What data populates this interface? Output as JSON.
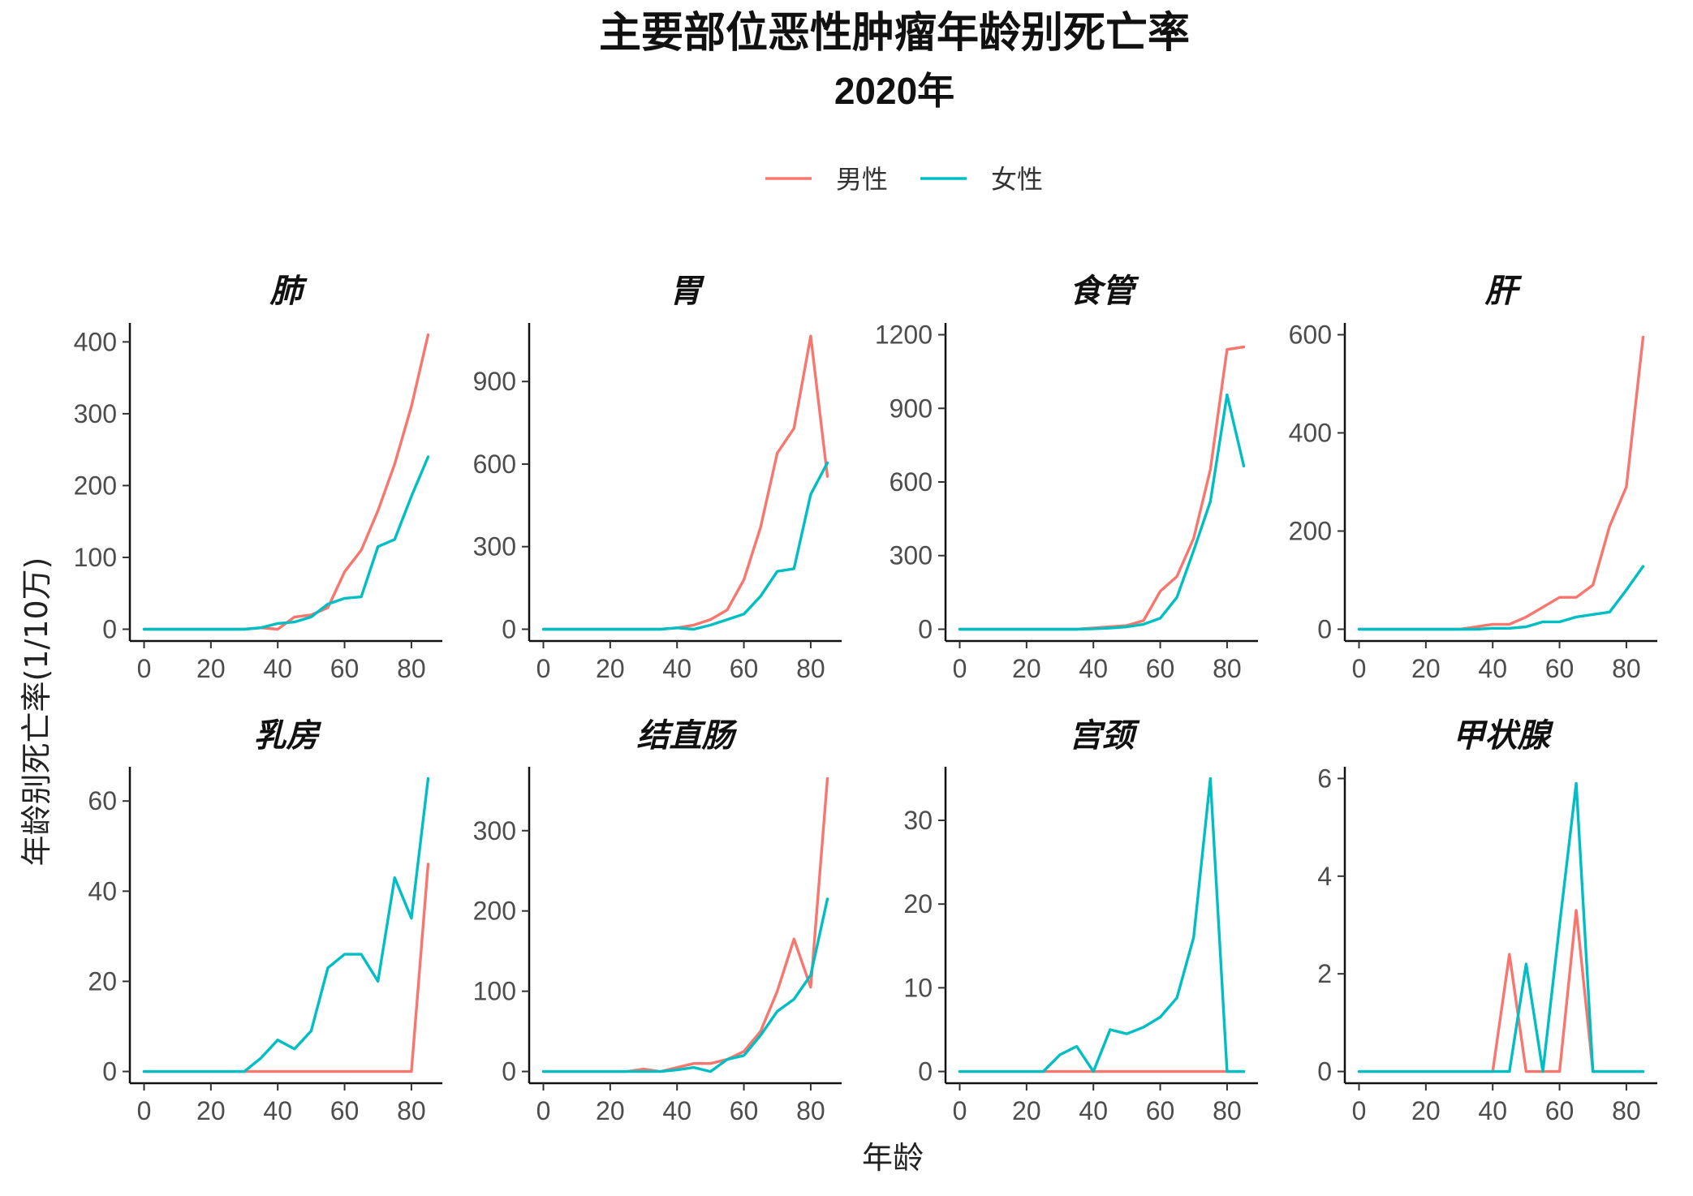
{
  "title": "主要部位恶性肿瘤年龄别死亡率",
  "subtitle": "2020年",
  "xlabel": "年龄",
  "ylabel": "年龄别死亡率(1/10万)",
  "legend": {
    "placement": "top",
    "items": [
      {
        "name": "男性",
        "color": "#F8766D"
      },
      {
        "name": "女性",
        "color": "#00BFC4"
      }
    ]
  },
  "chart_data": {
    "type": "line",
    "x": [
      0,
      5,
      10,
      15,
      20,
      25,
      30,
      35,
      40,
      45,
      50,
      55,
      60,
      65,
      70,
      75,
      80,
      85
    ],
    "xticks": [
      0,
      20,
      40,
      60,
      80
    ],
    "xlim": [
      0,
      85
    ],
    "grid": false,
    "panels": [
      {
        "title": "肺",
        "ylim": [
          0,
          410
        ],
        "yticks": [
          0,
          100,
          200,
          300,
          400
        ],
        "series": [
          {
            "name": "男性",
            "values": [
              0,
              0,
              0,
              0,
              0,
              0,
              0,
              2,
              0,
              17,
              20,
              30,
              80,
              110,
              165,
              230,
              310,
              410
            ]
          },
          {
            "name": "女性",
            "values": [
              0,
              0,
              0,
              0,
              0,
              0,
              0,
              2,
              8,
              10,
              17,
              35,
              43,
              45,
              115,
              125,
              185,
              240
            ]
          }
        ]
      },
      {
        "title": "胃",
        "ylim": [
          0,
          1070
        ],
        "yticks": [
          0,
          300,
          600,
          900
        ],
        "series": [
          {
            "name": "男性",
            "values": [
              0,
              0,
              0,
              0,
              0,
              0,
              0,
              0,
              5,
              15,
              35,
              70,
              180,
              370,
              640,
              730,
              1065,
              555
            ]
          },
          {
            "name": "女性",
            "values": [
              0,
              0,
              0,
              0,
              0,
              0,
              0,
              0,
              5,
              0,
              15,
              35,
              55,
              120,
              210,
              220,
              490,
              605
            ]
          }
        ]
      },
      {
        "title": "食管",
        "ylim": [
          0,
          1200
        ],
        "yticks": [
          0,
          300,
          600,
          900,
          1200
        ],
        "series": [
          {
            "name": "男性",
            "values": [
              0,
              0,
              0,
              0,
              0,
              0,
              0,
              0,
              5,
              10,
              15,
              35,
              155,
              215,
              370,
              650,
              1140,
              1150
            ]
          },
          {
            "name": "女性",
            "values": [
              0,
              0,
              0,
              0,
              0,
              0,
              0,
              0,
              2,
              5,
              10,
              20,
              45,
              130,
              320,
              520,
              955,
              665
            ]
          }
        ]
      },
      {
        "title": "肝",
        "ylim": [
          0,
          600
        ],
        "yticks": [
          0,
          200,
          400,
          600
        ],
        "series": [
          {
            "name": "男性",
            "values": [
              0,
              0,
              0,
              0,
              0,
              0,
              0,
              5,
              10,
              10,
              25,
              45,
              65,
              65,
              90,
              210,
              290,
              595
            ]
          },
          {
            "name": "女性",
            "values": [
              0,
              0,
              0,
              0,
              0,
              0,
              0,
              0,
              2,
              2,
              5,
              15,
              15,
              25,
              30,
              35,
              80,
              128
            ]
          }
        ]
      },
      {
        "title": "乳房",
        "ylim": [
          0,
          65
        ],
        "yticks": [
          0,
          20,
          40,
          60
        ],
        "series": [
          {
            "name": "男性",
            "values": [
              0,
              0,
              0,
              0,
              0,
              0,
              0,
              0,
              0,
              0,
              0,
              0,
              0,
              0,
              0,
              0,
              0,
              46
            ]
          },
          {
            "name": "女性",
            "values": [
              0,
              0,
              0,
              0,
              0,
              0,
              0,
              3,
              7,
              5,
              9,
              23,
              26,
              26,
              20,
              43,
              34,
              65
            ]
          }
        ]
      },
      {
        "title": "结直肠",
        "ylim": [
          0,
          365
        ],
        "yticks": [
          0,
          100,
          200,
          300
        ],
        "series": [
          {
            "name": "男性",
            "values": [
              0,
              0,
              0,
              0,
              0,
              0,
              3,
              0,
              5,
              10,
              10,
              15,
              25,
              50,
              100,
              165,
              105,
              365
            ]
          },
          {
            "name": "女性",
            "values": [
              0,
              0,
              0,
              0,
              0,
              0,
              0,
              0,
              2,
              5,
              0,
              15,
              20,
              45,
              75,
              90,
              120,
              215
            ]
          }
        ]
      },
      {
        "title": "宫颈",
        "ylim": [
          0,
          35
        ],
        "yticks": [
          0,
          10,
          20,
          30
        ],
        "series": [
          {
            "name": "男性",
            "values": [
              0,
              0,
              0,
              0,
              0,
              0,
              0,
              0,
              0,
              0,
              0,
              0,
              0,
              0,
              0,
              0,
              0,
              0
            ]
          },
          {
            "name": "女性",
            "values": [
              0,
              0,
              0,
              0,
              0,
              0,
              2,
              3,
              0,
              5,
              4.5,
              5.3,
              6.5,
              8.8,
              16,
              35,
              0,
              0
            ]
          }
        ]
      },
      {
        "title": "甲状腺",
        "ylim": [
          0,
          6
        ],
        "yticks": [
          0,
          2,
          4,
          6
        ],
        "series": [
          {
            "name": "男性",
            "values": [
              0,
              0,
              0,
              0,
              0,
              0,
              0,
              0,
              0,
              2.4,
              0,
              0,
              0,
              3.3,
              0,
              0,
              0,
              0
            ]
          },
          {
            "name": "女性",
            "values": [
              0,
              0,
              0,
              0,
              0,
              0,
              0,
              0,
              0,
              0,
              2.2,
              0,
              3,
              5.9,
              0,
              0,
              0,
              0
            ]
          }
        ]
      }
    ]
  }
}
